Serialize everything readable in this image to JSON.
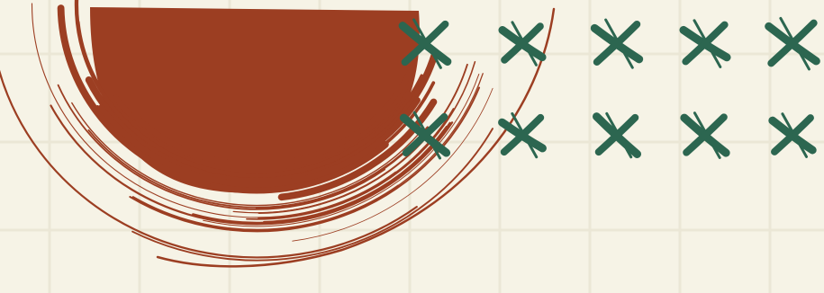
{
  "palette": {
    "background": "#f6f3e6",
    "grid_line": "#ebe7d6",
    "sun": "#9c3e22",
    "cross": "#2c6650"
  },
  "decorations": {
    "sun_icon": "brush-stroke-sun-icon",
    "cross_icon": "brush-stroke-cross-icon",
    "cross_rows": 2,
    "cross_columns": 5
  }
}
